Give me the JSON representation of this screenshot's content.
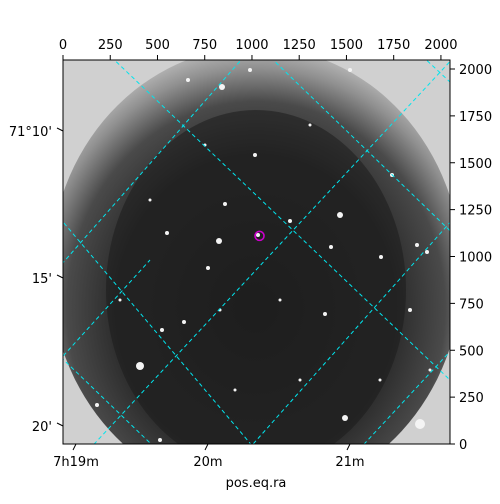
{
  "chart_data": {
    "type": "image",
    "image": "astronomical sky image (grayscale) with world-coordinate grid overlay",
    "xlabel": "pos.eq.ra",
    "ylabel": "",
    "pixel_axes": {
      "x_ticks": [
        "0",
        "250",
        "500",
        "750",
        "1000",
        "1250",
        "1500",
        "1750",
        "2000"
      ],
      "y_ticks": [
        "0",
        "250",
        "500",
        "750",
        "1000",
        "1250",
        "1500",
        "1750",
        "2000"
      ],
      "xlim": [
        0,
        2048
      ],
      "ylim": [
        0,
        2048
      ]
    },
    "world_axes": {
      "ra_ticks": [
        "7h19m",
        "20m",
        "21m"
      ],
      "dec_ticks": [
        "71°10'",
        "15'",
        "20'"
      ]
    },
    "marker": {
      "type": "circle",
      "color": "#cc00cc",
      "x": 1040,
      "y": 1110
    },
    "grid": true,
    "colors": {
      "grid": "#00e5ee",
      "marker": "#cc00cc",
      "sky_background": "#cfcfcf",
      "sky_dark": "#1e1e1e"
    }
  }
}
